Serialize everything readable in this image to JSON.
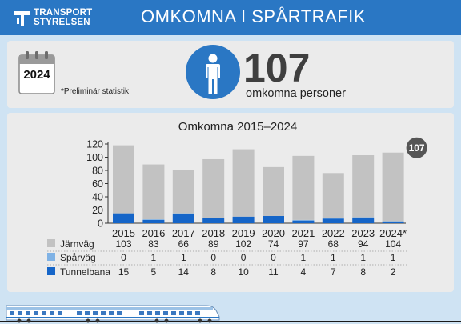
{
  "header": {
    "logo_line1": "TRANSPORT",
    "logo_line2": "STYRELSEN",
    "title": "OMKOMNA I SPÅRTRAFIK"
  },
  "summary": {
    "year": "2024",
    "note": "*Preliminär statistik",
    "count": "107",
    "count_label": "omkomna personer",
    "calendar_icon": "calendar-icon",
    "person_icon": "person-icon"
  },
  "chart_data": {
    "type": "bar",
    "stacked": true,
    "title": "Omkomna 2015–2024",
    "categories": [
      "2015",
      "2016",
      "2017",
      "2018",
      "2019",
      "2020",
      "2021",
      "2022",
      "2023",
      "2024*"
    ],
    "series": [
      {
        "name": "Tunnelbana",
        "values": [
          15,
          5,
          14,
          8,
          10,
          11,
          4,
          7,
          8,
          2
        ],
        "color": "#1565c8"
      },
      {
        "name": "Spårväg",
        "values": [
          0,
          1,
          1,
          0,
          0,
          0,
          1,
          1,
          1,
          1
        ],
        "color": "#7fb2e5"
      },
      {
        "name": "Järnväg",
        "values": [
          103,
          83,
          66,
          89,
          102,
          74,
          97,
          68,
          94,
          104
        ],
        "color": "#c2c2c2"
      }
    ],
    "table_order": [
      "Järnväg",
      "Spårväg",
      "Tunnelbana"
    ],
    "yticks": [
      0,
      20,
      40,
      60,
      80,
      100,
      120
    ],
    "ylim": [
      0,
      120
    ],
    "grid": false,
    "callout": {
      "category": "2024*",
      "label": "107"
    }
  },
  "colors": {
    "header_blue": "#2a77c4",
    "panel_bg": "#ebebeb",
    "page_bg": "#cfe3f3"
  }
}
